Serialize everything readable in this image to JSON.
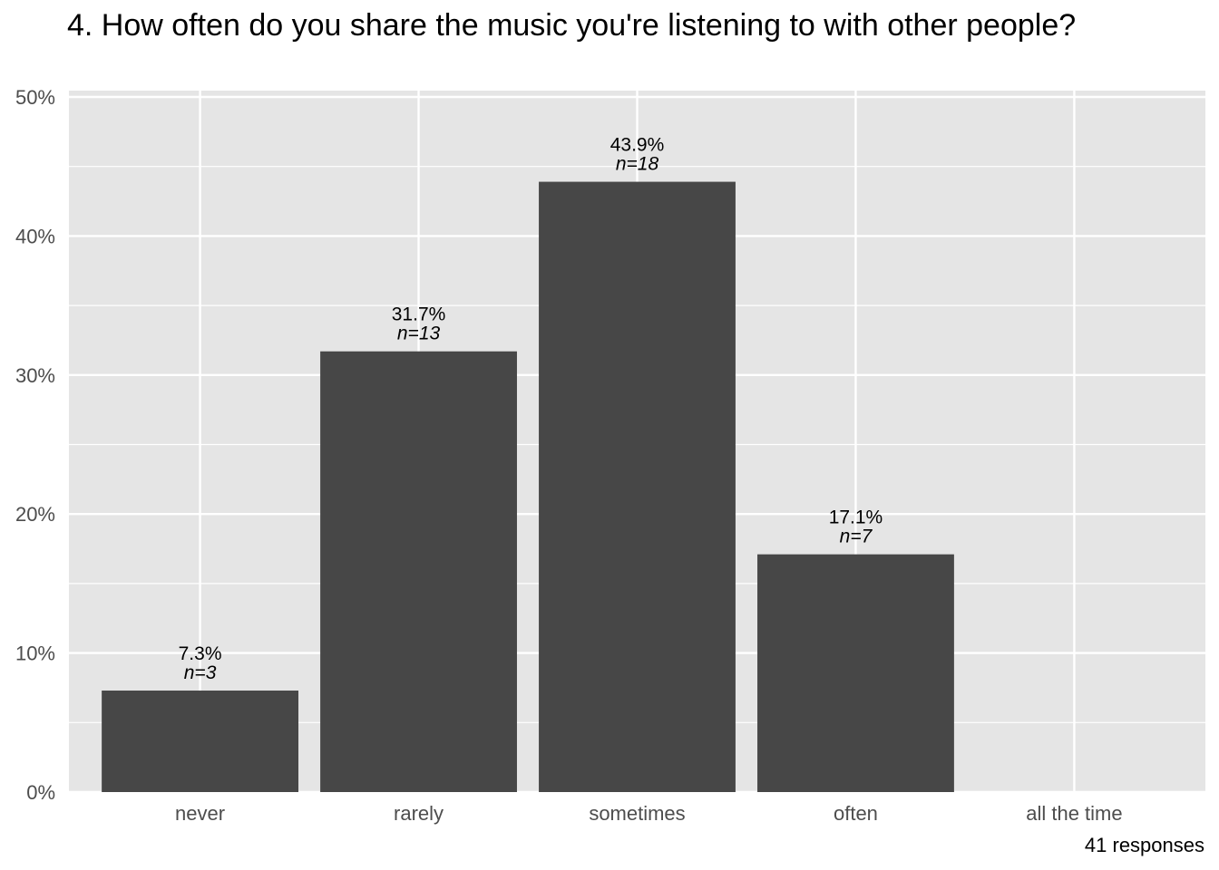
{
  "chart_data": {
    "type": "bar",
    "title": "4. How often do you share the music you're listening to with other people?",
    "categories": [
      "never",
      "rarely",
      "sometimes",
      "often",
      "all the time"
    ],
    "values": [
      7.3,
      31.7,
      43.9,
      17.1,
      0
    ],
    "counts": [
      3,
      13,
      18,
      7,
      null
    ],
    "value_labels": [
      "7.3%",
      "31.7%",
      "43.9%",
      "17.1%",
      ""
    ],
    "count_labels": [
      "n=3",
      "n=13",
      "n=18",
      "n=7",
      ""
    ],
    "ylim": [
      0,
      50
    ],
    "yticks": [
      0,
      10,
      20,
      30,
      40,
      50
    ],
    "ytick_labels": [
      "0%",
      "10%",
      "20%",
      "30%",
      "40%",
      "50%"
    ],
    "xlabel": "",
    "ylabel": "",
    "grid": true,
    "caption": "41 responses",
    "colors": {
      "bar": "#474747",
      "panel": "#e5e5e5",
      "grid": "#ffffff",
      "tick_text": "#4d4d4d"
    }
  }
}
